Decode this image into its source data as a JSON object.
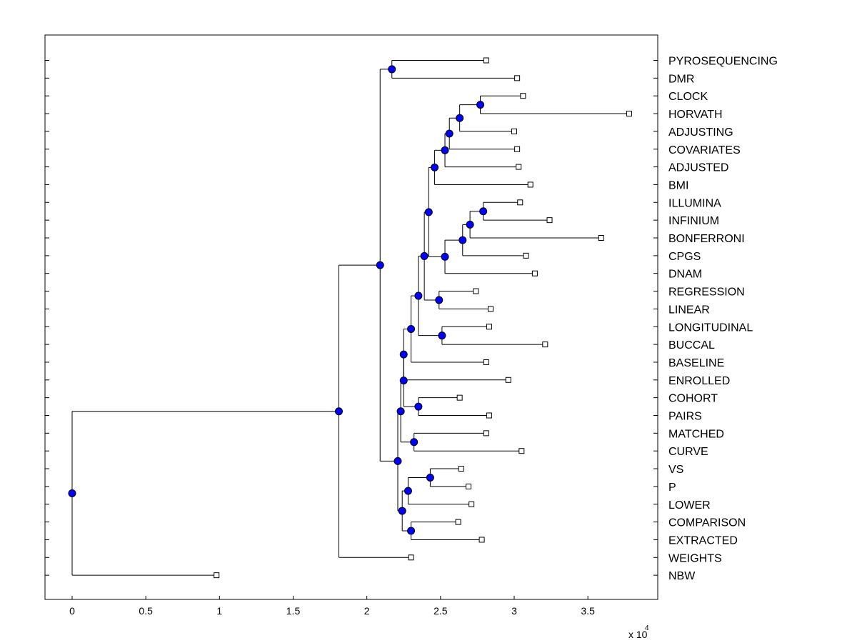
{
  "chart_data": {
    "type": "dendrogram",
    "title": "",
    "xlabel": "",
    "ylabel": "",
    "x_multiplier_base": "x 10",
    "x_multiplier_exponent": "4",
    "xlim": [
      -0.19,
      3.97
    ],
    "x_ticks": [
      {
        "value": 0,
        "label": "0"
      },
      {
        "value": 0.5,
        "label": "0.5"
      },
      {
        "value": 1,
        "label": "1"
      },
      {
        "value": 1.5,
        "label": "1.5"
      },
      {
        "value": 2,
        "label": "2"
      },
      {
        "value": 2.5,
        "label": "2.5"
      },
      {
        "value": 3,
        "label": "3"
      },
      {
        "value": 3.5,
        "label": "3.5"
      }
    ],
    "leaves": [
      {
        "label": "PYROSEQUENCING",
        "x": 2.81
      },
      {
        "label": "DMR",
        "x": 3.02
      },
      {
        "label": "CLOCK",
        "x": 3.06
      },
      {
        "label": "HORVATH",
        "x": 3.78
      },
      {
        "label": "ADJUSTING",
        "x": 3.0
      },
      {
        "label": "COVARIATES",
        "x": 3.02
      },
      {
        "label": "ADJUSTED",
        "x": 3.03
      },
      {
        "label": "BMI",
        "x": 3.11
      },
      {
        "label": "ILLUMINA",
        "x": 3.04
      },
      {
        "label": "INFINIUM",
        "x": 3.24
      },
      {
        "label": "BONFERRONI",
        "x": 3.59
      },
      {
        "label": "CPGS",
        "x": 3.08
      },
      {
        "label": "DNAM",
        "x": 3.14
      },
      {
        "label": "REGRESSION",
        "x": 2.74
      },
      {
        "label": "LINEAR",
        "x": 2.84
      },
      {
        "label": "LONGITUDINAL",
        "x": 2.83
      },
      {
        "label": "BUCCAL",
        "x": 3.21
      },
      {
        "label": "BASELINE",
        "x": 2.81
      },
      {
        "label": "ENROLLED",
        "x": 2.96
      },
      {
        "label": "COHORT",
        "x": 2.63
      },
      {
        "label": "PAIRS",
        "x": 2.83
      },
      {
        "label": "MATCHED",
        "x": 2.81
      },
      {
        "label": "CURVE",
        "x": 3.05
      },
      {
        "label": "VS",
        "x": 2.64
      },
      {
        "label": "P",
        "x": 2.69
      },
      {
        "label": "LOWER",
        "x": 2.71
      },
      {
        "label": "COMPARISON",
        "x": 2.62
      },
      {
        "label": "EXTRACTED",
        "x": 2.78
      },
      {
        "label": "WEIGHTS",
        "x": 2.3
      },
      {
        "label": "NBW",
        "x": 0.98
      }
    ],
    "merges": [
      {
        "id": "n_pyro_dmr",
        "x": 2.17,
        "children": [
          "L0",
          "L1"
        ]
      },
      {
        "id": "n_clock_horvath",
        "x": 2.77,
        "children": [
          "L2",
          "L3"
        ]
      },
      {
        "id": "n_adjusting",
        "x": 2.63,
        "children": [
          "n_clock_horvath",
          "L4"
        ]
      },
      {
        "id": "n_covariates",
        "x": 2.56,
        "children": [
          "n_adjusting",
          "L5"
        ]
      },
      {
        "id": "n_adjusted",
        "x": 2.53,
        "children": [
          "n_covariates",
          "L6"
        ]
      },
      {
        "id": "n_bmi",
        "x": 2.46,
        "children": [
          "n_adjusted",
          "L7"
        ]
      },
      {
        "id": "n_illumina_infinium",
        "x": 2.79,
        "children": [
          "L8",
          "L9"
        ]
      },
      {
        "id": "n_bonferroni",
        "x": 2.7,
        "children": [
          "n_illumina_infinium",
          "L10"
        ]
      },
      {
        "id": "n_cpgs",
        "x": 2.65,
        "children": [
          "n_bonferroni",
          "L11"
        ]
      },
      {
        "id": "n_dnam",
        "x": 2.53,
        "children": [
          "n_cpgs",
          "L12"
        ]
      },
      {
        "id": "n_upper_mid",
        "x": 2.42,
        "children": [
          "n_bmi",
          "n_dnam"
        ]
      },
      {
        "id": "n_regression_linear",
        "x": 2.49,
        "children": [
          "L13",
          "L14"
        ]
      },
      {
        "id": "n_mid",
        "x": 2.39,
        "children": [
          "n_upper_mid",
          "n_regression_linear"
        ]
      },
      {
        "id": "n_longitudinal_buccal",
        "x": 2.51,
        "children": [
          "L15",
          "L16"
        ]
      },
      {
        "id": "n_mid2",
        "x": 2.35,
        "children": [
          "n_mid",
          "n_longitudinal_buccal"
        ]
      },
      {
        "id": "n_baseline",
        "x": 2.3,
        "children": [
          "n_mid2",
          "L17"
        ]
      },
      {
        "id": "n_enrolled",
        "x": 2.25,
        "children": [
          "n_baseline",
          "L18"
        ]
      },
      {
        "id": "n_cohort_pairs",
        "x": 2.35,
        "children": [
          "L19",
          "L20"
        ]
      },
      {
        "id": "n_enrolled2",
        "x": 2.25,
        "children": [
          "n_enrolled",
          "n_cohort_pairs"
        ]
      },
      {
        "id": "n_matched_curve",
        "x": 2.32,
        "children": [
          "L21",
          "L22"
        ]
      },
      {
        "id": "n_mid3",
        "x": 2.23,
        "children": [
          "n_enrolled2",
          "n_matched_curve"
        ]
      },
      {
        "id": "n_vs_p",
        "x": 2.43,
        "children": [
          "L23",
          "L24"
        ]
      },
      {
        "id": "n_lower",
        "x": 2.28,
        "children": [
          "n_vs_p",
          "L25"
        ]
      },
      {
        "id": "n_comparison_extracted",
        "x": 2.3,
        "children": [
          "L26",
          "L27"
        ]
      },
      {
        "id": "n_lower2",
        "x": 2.24,
        "children": [
          "n_lower",
          "n_comparison_extracted"
        ]
      },
      {
        "id": "n_mid4",
        "x": 2.21,
        "children": [
          "n_mid3",
          "n_lower2"
        ]
      },
      {
        "id": "n_upper",
        "x": 2.09,
        "children": [
          "n_pyro_dmr",
          "n_mid4"
        ]
      },
      {
        "id": "n_weights",
        "x": 1.81,
        "children": [
          "n_upper",
          "L28"
        ]
      },
      {
        "id": "n_root",
        "x": 0.0,
        "children": [
          "n_weights",
          "L29"
        ]
      }
    ]
  }
}
